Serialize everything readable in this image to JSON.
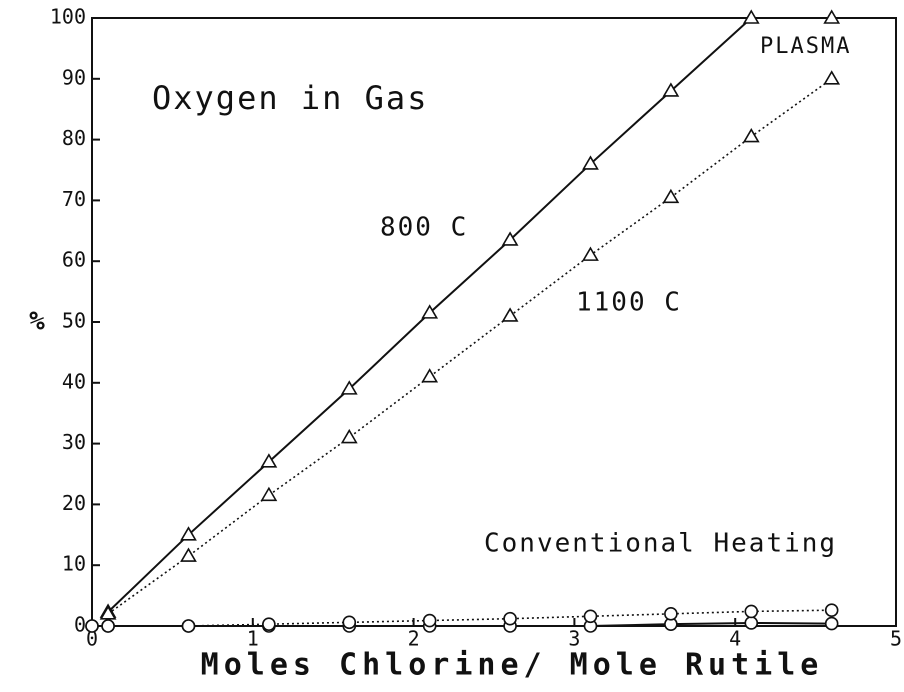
{
  "chart_data": {
    "type": "line",
    "ylabel": "%",
    "xlabel": "Moles Chlorine/ Mole Rutile",
    "annotations": [
      "Oxygen in Gas",
      "800 C",
      "1100 C",
      "PLASMA",
      "Conventional Heating"
    ],
    "xlim": [
      0,
      5
    ],
    "xticks": [
      0,
      1,
      2,
      3,
      4,
      5
    ],
    "ylim": [
      0,
      100
    ],
    "yticks": [
      0,
      10,
      20,
      30,
      40,
      50,
      60,
      70,
      80,
      90,
      100
    ],
    "series": [
      {
        "name": "800 C plasma",
        "dash": "solid",
        "marker": "triangle",
        "x": [
          0.1,
          0.6,
          1.1,
          1.6,
          2.1,
          2.6,
          3.1,
          3.6,
          4.1,
          4.6
        ],
        "values": [
          2.3,
          15,
          27,
          39,
          51.5,
          63.5,
          76,
          88,
          100,
          100
        ]
      },
      {
        "name": "1100 C plasma",
        "dash": "dotted",
        "marker": "triangle",
        "x": [
          0.1,
          0.6,
          1.1,
          1.6,
          2.1,
          2.6,
          3.1,
          3.6,
          4.1,
          4.6
        ],
        "values": [
          2,
          11.5,
          21.5,
          31,
          41,
          51,
          61,
          70.5,
          80.5,
          90
        ]
      },
      {
        "name": "800 C conventional",
        "dash": "solid",
        "marker": "circle",
        "x": [
          0,
          0.1,
          0.6,
          1.1,
          1.6,
          2.1,
          2.6,
          3.1,
          3.6,
          4.1,
          4.6
        ],
        "values": [
          0,
          0,
          0,
          0,
          0,
          0,
          0,
          0,
          0.3,
          0.5,
          0.4
        ]
      },
      {
        "name": "1100 C conventional",
        "dash": "dotted",
        "marker": "circle",
        "x": [
          0,
          0.1,
          0.6,
          1.1,
          1.6,
          2.1,
          2.6,
          3.1,
          3.6,
          4.1,
          4.6
        ],
        "values": [
          0,
          0,
          0,
          0.3,
          0.6,
          0.9,
          1.2,
          1.6,
          2,
          2.4,
          2.6
        ]
      }
    ]
  }
}
